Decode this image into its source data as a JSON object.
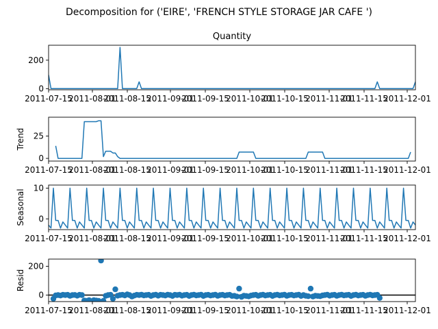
{
  "suptitle": "Decomposition for ('EIRE', 'FRENCH STYLE STORAGE JAR CAFE ')",
  "colors": {
    "line": "#1f77b4",
    "axis": "#000000",
    "background": "#ffffff"
  },
  "x_tick_labels": [
    "2011-07-15",
    "2011-08-01",
    "2011-08-15",
    "2011-09-01",
    "2011-09-15",
    "2011-10-01",
    "2011-10-15",
    "2011-11-01",
    "2011-11-15",
    "2011-12-01"
  ],
  "chart_data": [
    {
      "type": "line",
      "title": "Quantity",
      "ylabel": "",
      "ylim": [
        -8,
        305
      ],
      "yticks": [
        0,
        200
      ],
      "grid": false,
      "x_range": [
        0,
        154
      ],
      "x_days": [
        0,
        26,
        30,
        34,
        38,
        92,
        138,
        154
      ],
      "y": [
        96,
        0,
        290,
        0,
        48,
        0,
        48,
        48
      ]
    },
    {
      "type": "line",
      "title": "",
      "ylabel": "Trend",
      "ylim": [
        -3,
        46
      ],
      "yticks": [
        0,
        25
      ],
      "grid": false,
      "x_range": [
        0,
        154
      ],
      "x_days": [
        3,
        4,
        14,
        15,
        20,
        21,
        22,
        23,
        24,
        26,
        27,
        28,
        29,
        30,
        31,
        32,
        34,
        35,
        36,
        79,
        80,
        86,
        87,
        108,
        109,
        115,
        116,
        151,
        152
      ],
      "y": [
        14,
        0,
        0,
        41,
        41,
        42,
        42,
        2,
        8,
        8,
        6,
        6,
        2,
        0,
        0,
        0,
        0,
        0,
        0,
        0,
        7,
        7,
        0,
        0,
        7,
        7,
        0,
        0,
        7
      ]
    },
    {
      "type": "line",
      "title": "",
      "ylabel": "Seasonal",
      "ylim": [
        -3.5,
        11
      ],
      "yticks": [
        0,
        10
      ],
      "grid": false,
      "x_range": [
        0,
        154
      ],
      "period": 7,
      "pattern": [
        -2,
        -3,
        10,
        -0.5,
        -0.5,
        -3,
        -1
      ]
    },
    {
      "type": "scatter",
      "title": "",
      "ylabel": "Resid",
      "ylim": [
        -45,
        250
      ],
      "yticks": [
        0,
        200
      ],
      "grid": false,
      "zero_line": true,
      "x_range": [
        0,
        154
      ],
      "points": [
        [
          2,
          -25
        ],
        [
          3,
          -2
        ],
        [
          4,
          0
        ],
        [
          5,
          -3
        ],
        [
          6,
          2
        ],
        [
          7,
          0
        ],
        [
          8,
          2
        ],
        [
          9,
          -5
        ],
        [
          10,
          0
        ],
        [
          11,
          1
        ],
        [
          12,
          -4
        ],
        [
          13,
          2
        ],
        [
          14,
          0
        ],
        [
          15,
          -38
        ],
        [
          16,
          -40
        ],
        [
          17,
          -35
        ],
        [
          18,
          -42
        ],
        [
          19,
          -35
        ],
        [
          20,
          -38
        ],
        [
          21,
          -40
        ],
        [
          22,
          240
        ],
        [
          23,
          -40
        ],
        [
          24,
          -5
        ],
        [
          25,
          0
        ],
        [
          26,
          2
        ],
        [
          27,
          -25
        ],
        [
          28,
          40
        ],
        [
          29,
          -4
        ],
        [
          30,
          0
        ],
        [
          31,
          2
        ],
        [
          32,
          -2
        ],
        [
          33,
          5
        ],
        [
          34,
          0
        ],
        [
          35,
          -10
        ],
        [
          36,
          -3
        ],
        [
          37,
          2
        ],
        [
          38,
          0
        ],
        [
          39,
          3
        ],
        [
          40,
          -2
        ],
        [
          41,
          0
        ],
        [
          42,
          2
        ],
        [
          43,
          -6
        ],
        [
          44,
          0
        ],
        [
          45,
          3
        ],
        [
          46,
          -4
        ],
        [
          47,
          2
        ],
        [
          48,
          0
        ],
        [
          49,
          -3
        ],
        [
          50,
          3
        ],
        [
          51,
          0
        ],
        [
          52,
          -6
        ],
        [
          53,
          2
        ],
        [
          54,
          0
        ],
        [
          55,
          3
        ],
        [
          56,
          -4
        ],
        [
          57,
          0
        ],
        [
          58,
          2
        ],
        [
          59,
          -6
        ],
        [
          60,
          0
        ],
        [
          61,
          3
        ],
        [
          62,
          -2
        ],
        [
          63,
          0
        ],
        [
          64,
          3
        ],
        [
          65,
          -6
        ],
        [
          66,
          0
        ],
        [
          67,
          2
        ],
        [
          68,
          -3
        ],
        [
          69,
          0
        ],
        [
          70,
          3
        ],
        [
          71,
          -5
        ],
        [
          72,
          0
        ],
        [
          73,
          2
        ],
        [
          74,
          -3
        ],
        [
          75,
          0
        ],
        [
          76,
          2
        ],
        [
          77,
          -6
        ],
        [
          78,
          -5
        ],
        [
          79,
          -10
        ],
        [
          80,
          45
        ],
        [
          81,
          -12
        ],
        [
          82,
          -4
        ],
        [
          83,
          -6
        ],
        [
          84,
          -9
        ],
        [
          85,
          -3
        ],
        [
          86,
          0
        ],
        [
          87,
          2
        ],
        [
          88,
          -5
        ],
        [
          89,
          0
        ],
        [
          90,
          3
        ],
        [
          91,
          -3
        ],
        [
          92,
          0
        ],
        [
          93,
          2
        ],
        [
          94,
          -6
        ],
        [
          95,
          0
        ],
        [
          96,
          3
        ],
        [
          97,
          -2
        ],
        [
          98,
          0
        ],
        [
          99,
          3
        ],
        [
          100,
          -5
        ],
        [
          101,
          0
        ],
        [
          102,
          2
        ],
        [
          103,
          -3
        ],
        [
          104,
          0
        ],
        [
          105,
          3
        ],
        [
          106,
          -6
        ],
        [
          107,
          0
        ],
        [
          108,
          -5
        ],
        [
          109,
          -8
        ],
        [
          110,
          45
        ],
        [
          111,
          -10
        ],
        [
          112,
          -4
        ],
        [
          113,
          -6
        ],
        [
          114,
          -8
        ],
        [
          115,
          -2
        ],
        [
          116,
          0
        ],
        [
          117,
          3
        ],
        [
          118,
          -4
        ],
        [
          119,
          0
        ],
        [
          120,
          2
        ],
        [
          121,
          -5
        ],
        [
          122,
          0
        ],
        [
          123,
          3
        ],
        [
          124,
          -2
        ],
        [
          125,
          0
        ],
        [
          126,
          2
        ],
        [
          127,
          -6
        ],
        [
          128,
          0
        ],
        [
          129,
          3
        ],
        [
          130,
          -3
        ],
        [
          131,
          0
        ],
        [
          132,
          2
        ],
        [
          133,
          -5
        ],
        [
          134,
          0
        ],
        [
          135,
          3
        ],
        [
          136,
          -2
        ],
        [
          137,
          0
        ],
        [
          138,
          2
        ],
        [
          139,
          -20
        ]
      ]
    }
  ]
}
